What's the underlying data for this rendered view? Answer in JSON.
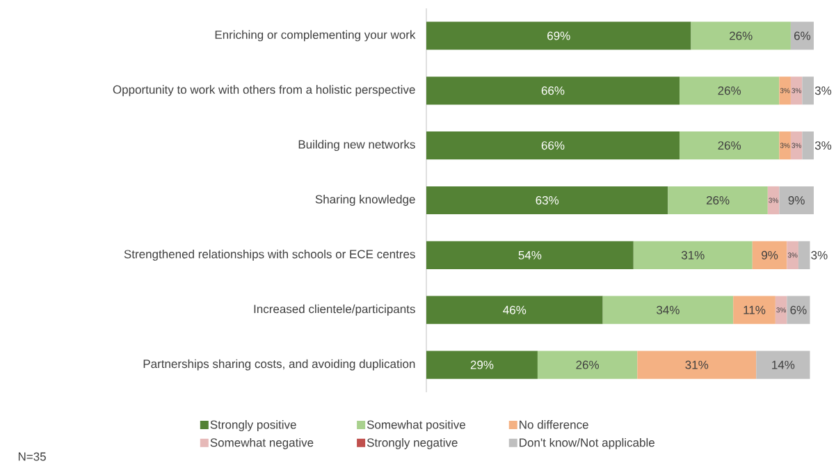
{
  "chart_data": {
    "type": "bar",
    "orientation": "horizontal",
    "stacked": true,
    "categories": [
      "Enriching or complementing your work",
      "Opportunity to work with others from a holistic perspective",
      "Building new networks",
      "Sharing knowledge",
      "Strengthened relationships with schools or ECE centres",
      "Increased clientele/participants",
      "Partnerships sharing costs, and avoiding duplication"
    ],
    "xlim": [
      0,
      101
    ],
    "tick_labels": "y",
    "legend": "bottom",
    "annotations": [
      "N=35"
    ],
    "series": [
      {
        "name": "Strongly positive",
        "color": "#548235",
        "values": [
          69,
          66,
          66,
          63,
          54,
          46,
          29
        ],
        "value_labels": [
          "69%",
          "66%",
          "66%",
          "63%",
          "54%",
          "46%",
          "29%"
        ]
      },
      {
        "name": "Somewhat positive",
        "color": "#a9d18e",
        "values": [
          26,
          26,
          26,
          26,
          31,
          34,
          26
        ],
        "value_labels": [
          "26%",
          "26%",
          "26%",
          "26%",
          "31%",
          "34%",
          "26%"
        ]
      },
      {
        "name": "No difference",
        "color": "#f4b183",
        "values": [
          null,
          3,
          3,
          null,
          9,
          11,
          31
        ],
        "value_labels": [
          null,
          "3%",
          "3%",
          null,
          "9%",
          "11%",
          "31%"
        ]
      },
      {
        "name": "Somewhat negative",
        "color": "#e6b9b8",
        "values": [
          null,
          3,
          3,
          3,
          3,
          3,
          null
        ],
        "value_labels": [
          null,
          "3%",
          "3%",
          "3%",
          "3%",
          "3%",
          null
        ]
      },
      {
        "name": "Strongly negative",
        "color": "#c0504d",
        "values": [
          null,
          null,
          null,
          null,
          null,
          null,
          null
        ],
        "value_labels": [
          null,
          null,
          null,
          null,
          null,
          null,
          null
        ]
      },
      {
        "name": "Don't know/Not applicable",
        "color": "#bfbfbf",
        "values": [
          6,
          3,
          3,
          9,
          3,
          6,
          14
        ],
        "value_labels": [
          "6%",
          "3%",
          "3%",
          "9%",
          "3%",
          "6%",
          "14%"
        ]
      }
    ]
  }
}
